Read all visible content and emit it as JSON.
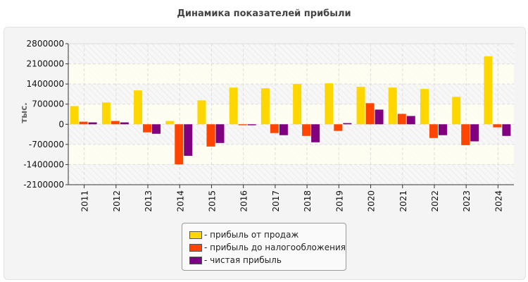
{
  "chart_data": {
    "type": "bar",
    "title": "Динамика показателей прибыли",
    "ylabel": "тыс.",
    "xlabel": "",
    "ylim": [
      -2100000,
      2800000
    ],
    "yticks": [
      2800000,
      2100000,
      1400000,
      700000,
      0,
      -700000,
      -1400000,
      -2100000
    ],
    "grid": true,
    "legend_position": "bottom",
    "categories": [
      "2011",
      "2012",
      "2013",
      "2014",
      "2015",
      "2016",
      "2017",
      "2018",
      "2019",
      "2020",
      "2021",
      "2022",
      "2023",
      "2024"
    ],
    "series": [
      {
        "name": "- прибыль от продаж",
        "color": "#FFD700",
        "values": [
          634000,
          758000,
          1178000,
          115000,
          832000,
          1276000,
          1252000,
          1400000,
          1425000,
          1301000,
          1276000,
          1227000,
          955000,
          2363000
        ]
      },
      {
        "name": "- прибыль до налогообложения",
        "color": "#FF4500",
        "values": [
          90000,
          115000,
          -280000,
          -1392000,
          -774000,
          -33000,
          -305000,
          -404000,
          -230000,
          733000,
          362000,
          -478000,
          -725000,
          -107000
        ]
      },
      {
        "name": "- чистая прибыль",
        "color": "#800080",
        "values": [
          66000,
          66000,
          -330000,
          -1095000,
          -650000,
          -33000,
          -379000,
          -626000,
          41000,
          510000,
          288000,
          -379000,
          -593000,
          -404000
        ]
      }
    ]
  }
}
